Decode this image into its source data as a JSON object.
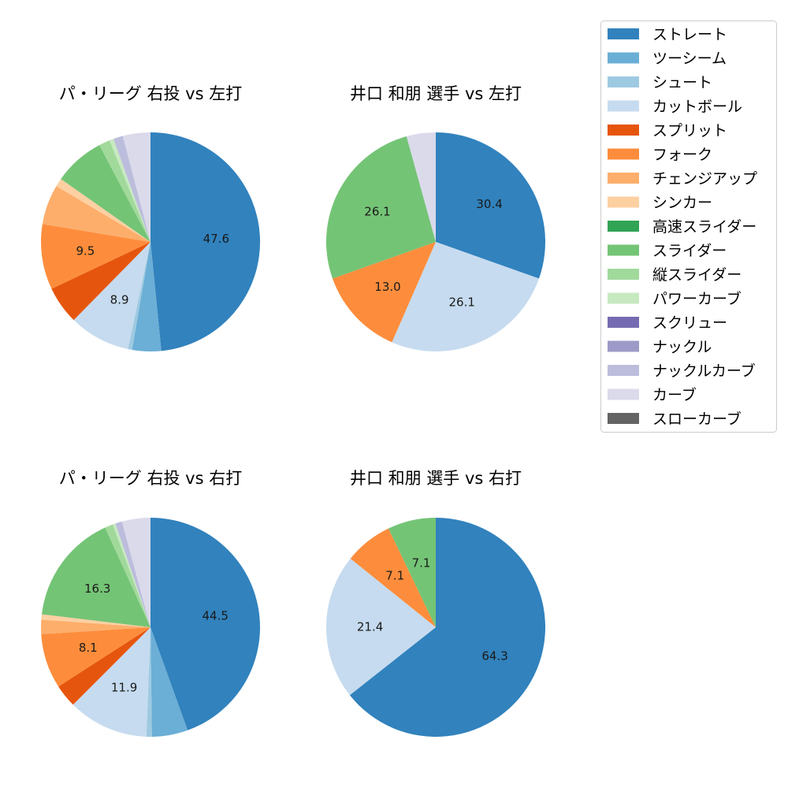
{
  "legend": {
    "entries": [
      {
        "label": "ストレート",
        "color": "#3182bd"
      },
      {
        "label": "ツーシーム",
        "color": "#6baed6"
      },
      {
        "label": "シュート",
        "color": "#9ecae1"
      },
      {
        "label": "カットボール",
        "color": "#c6dbef"
      },
      {
        "label": "スプリット",
        "color": "#e6550d"
      },
      {
        "label": "フォーク",
        "color": "#fd8d3c"
      },
      {
        "label": "チェンジアップ",
        "color": "#fdae6b"
      },
      {
        "label": "シンカー",
        "color": "#fdd0a2"
      },
      {
        "label": "高速スライダー",
        "color": "#31a354"
      },
      {
        "label": "スライダー",
        "color": "#74c476"
      },
      {
        "label": "縦スライダー",
        "color": "#a1d99b"
      },
      {
        "label": "パワーカーブ",
        "color": "#c7e9c0"
      },
      {
        "label": "スクリュー",
        "color": "#756bb1"
      },
      {
        "label": "ナックル",
        "color": "#9e9ac8"
      },
      {
        "label": "ナックルカーブ",
        "color": "#bcbddc"
      },
      {
        "label": "カーブ",
        "color": "#dadaeb"
      },
      {
        "label": "スローカーブ",
        "color": "#636363"
      }
    ]
  },
  "chart_data": [
    {
      "type": "pie",
      "title": "パ・リーグ 右投 vs 左打",
      "slices": [
        {
          "label": "ストレート",
          "value": 47.6,
          "shown": "47.6"
        },
        {
          "label": "ツーシーム",
          "value": 4.2
        },
        {
          "label": "シュート",
          "value": 0.6
        },
        {
          "label": "カットボール",
          "value": 8.9,
          "shown": "8.9"
        },
        {
          "label": "スプリット",
          "value": 5.5
        },
        {
          "label": "フォーク",
          "value": 9.5,
          "shown": "9.5"
        },
        {
          "label": "チェンジアップ",
          "value": 5.8
        },
        {
          "label": "シンカー",
          "value": 1.2
        },
        {
          "label": "スライダー",
          "value": 7.4
        },
        {
          "label": "縦スライダー",
          "value": 1.6
        },
        {
          "label": "パワーカーブ",
          "value": 0.6
        },
        {
          "label": "ナックルカーブ",
          "value": 1.4
        },
        {
          "label": "カーブ",
          "value": 4.0
        }
      ]
    },
    {
      "type": "pie",
      "title": "井口 和朋 選手 vs 左打",
      "slices": [
        {
          "label": "ストレート",
          "value": 30.4,
          "shown": "30.4"
        },
        {
          "label": "カットボール",
          "value": 26.1,
          "shown": "26.1"
        },
        {
          "label": "フォーク",
          "value": 13.0,
          "shown": "13.0"
        },
        {
          "label": "スライダー",
          "value": 26.1,
          "shown": "26.1"
        },
        {
          "label": "カーブ",
          "value": 4.3
        }
      ]
    },
    {
      "type": "pie",
      "title": "パ・リーグ 右投 vs 右打",
      "slices": [
        {
          "label": "ストレート",
          "value": 44.5,
          "shown": "44.5"
        },
        {
          "label": "ツーシーム",
          "value": 5.3
        },
        {
          "label": "シュート",
          "value": 0.8
        },
        {
          "label": "カットボール",
          "value": 11.9,
          "shown": "11.9"
        },
        {
          "label": "スプリット",
          "value": 3.4
        },
        {
          "label": "フォーク",
          "value": 8.1,
          "shown": "8.1"
        },
        {
          "label": "チェンジアップ",
          "value": 2.1
        },
        {
          "label": "シンカー",
          "value": 0.8
        },
        {
          "label": "スライダー",
          "value": 16.3,
          "shown": "16.3"
        },
        {
          "label": "縦スライダー",
          "value": 1.2
        },
        {
          "label": "パワーカーブ",
          "value": 0.4
        },
        {
          "label": "ナックルカーブ",
          "value": 1.0
        },
        {
          "label": "カーブ",
          "value": 4.2
        }
      ]
    },
    {
      "type": "pie",
      "title": "井口 和朋 選手 vs 右打",
      "slices": [
        {
          "label": "ストレート",
          "value": 64.3,
          "shown": "64.3"
        },
        {
          "label": "カットボール",
          "value": 21.4,
          "shown": "21.4"
        },
        {
          "label": "フォーク",
          "value": 7.1,
          "shown": "7.1"
        },
        {
          "label": "スライダー",
          "value": 7.1,
          "shown": "7.1"
        }
      ]
    }
  ]
}
